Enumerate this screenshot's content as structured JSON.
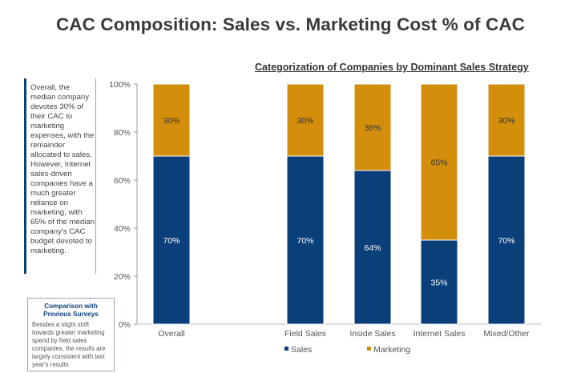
{
  "title": "CAC Composition: Sales vs. Marketing Cost % of CAC",
  "chart_subtitle": "Categorization of Companies by Dominant Sales Strategy",
  "note": "Overall, the median company devotes 30% of their CAC to marketing expenses, with the remainder allocated to sales. However, Internet sales-driven companies have a much greater reliance on marketing, with 65% of the median company's CAC budget devoted to marketing.",
  "comparison": {
    "title": "Comparison with Previous Surveys",
    "text": "Besides a slight shift towards greater marketing spend by field sales companies, the results are largely consistent with last year's results"
  },
  "chart_data": {
    "type": "bar",
    "stacked": true,
    "percent": true,
    "categories": [
      "Overall",
      "Field Sales",
      "Inside Sales",
      "Internet Sales",
      "Mixed/Other"
    ],
    "series": [
      {
        "name": "Sales",
        "values": [
          70,
          70,
          64,
          35,
          70
        ],
        "labels": [
          "70%",
          "70%",
          "64%",
          "35%",
          "70%"
        ],
        "color": "#0a3f7a"
      },
      {
        "name": "Marketing",
        "values": [
          30,
          30,
          36,
          65,
          30
        ],
        "labels": [
          "30%",
          "30%",
          "36%",
          "65%",
          "30%"
        ],
        "color": "#d38f0c"
      }
    ],
    "ylim": [
      0,
      100
    ],
    "yticks": [
      0,
      20,
      40,
      60,
      80,
      100
    ],
    "ytick_labels": [
      "0%",
      "20%",
      "40%",
      "60%",
      "80%",
      "100%"
    ],
    "grid": false,
    "legend_position": "bottom",
    "label_color": "#333333",
    "inner_label_color": "#ffffff"
  }
}
